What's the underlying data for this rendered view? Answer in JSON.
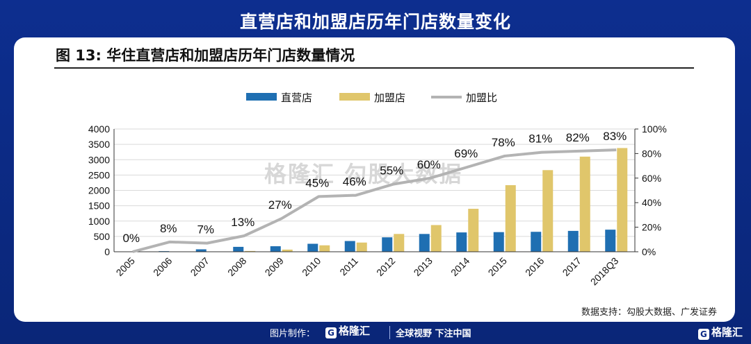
{
  "headline": "直营店和加盟店历年门店数量变化",
  "figure_title": "图 13:  华住直营店和加盟店历年门店数量情况",
  "source": "数据支持：勾股大数据、广发证券",
  "watermark": {
    "brand": "格隆汇",
    "text": "勾股大数据"
  },
  "footer": {
    "made_by": "图片制作：",
    "brand": "格隆汇",
    "slogan": "全球视野 下注中国",
    "corner_brand": "格隆汇"
  },
  "colors": {
    "direct": "#1f6fb2",
    "franchise": "#e0c66b",
    "ratio": "#b3b3b3"
  },
  "chart_data": {
    "type": "bar",
    "categories": [
      "2005",
      "2006",
      "2007",
      "2008",
      "2009",
      "2010",
      "2011",
      "2012",
      "2013",
      "2014",
      "2015",
      "2016",
      "2017",
      "2018Q3"
    ],
    "series": [
      {
        "name": "直营店",
        "type": "bar",
        "axis": "left",
        "values": [
          5,
          20,
          80,
          160,
          180,
          260,
          350,
          470,
          580,
          630,
          640,
          650,
          680,
          720
        ]
      },
      {
        "name": "加盟店",
        "type": "bar",
        "axis": "left",
        "values": [
          0,
          3,
          10,
          25,
          70,
          210,
          300,
          580,
          870,
          1400,
          2170,
          2660,
          3100,
          3380
        ]
      },
      {
        "name": "加盟比",
        "type": "line",
        "axis": "right",
        "values": [
          0,
          8,
          7,
          13,
          27,
          45,
          46,
          55,
          60,
          69,
          78,
          81,
          82,
          83
        ]
      }
    ],
    "data_labels": [
      "0%",
      "8%",
      "7%",
      "13%",
      "27%",
      "45%",
      "46%",
      "55%",
      "60%",
      "69%",
      "78%",
      "81%",
      "82%",
      "83%"
    ],
    "ylim": [
      0,
      4000
    ],
    "y_ticks": [
      "0",
      "500",
      "1000",
      "1500",
      "2000",
      "2500",
      "3000",
      "3500",
      "4000"
    ],
    "y2lim": [
      0,
      100
    ],
    "y2_ticks": [
      "0%",
      "20%",
      "40%",
      "60%",
      "80%",
      "100%"
    ],
    "grid": true,
    "legend_position": "top-center"
  }
}
